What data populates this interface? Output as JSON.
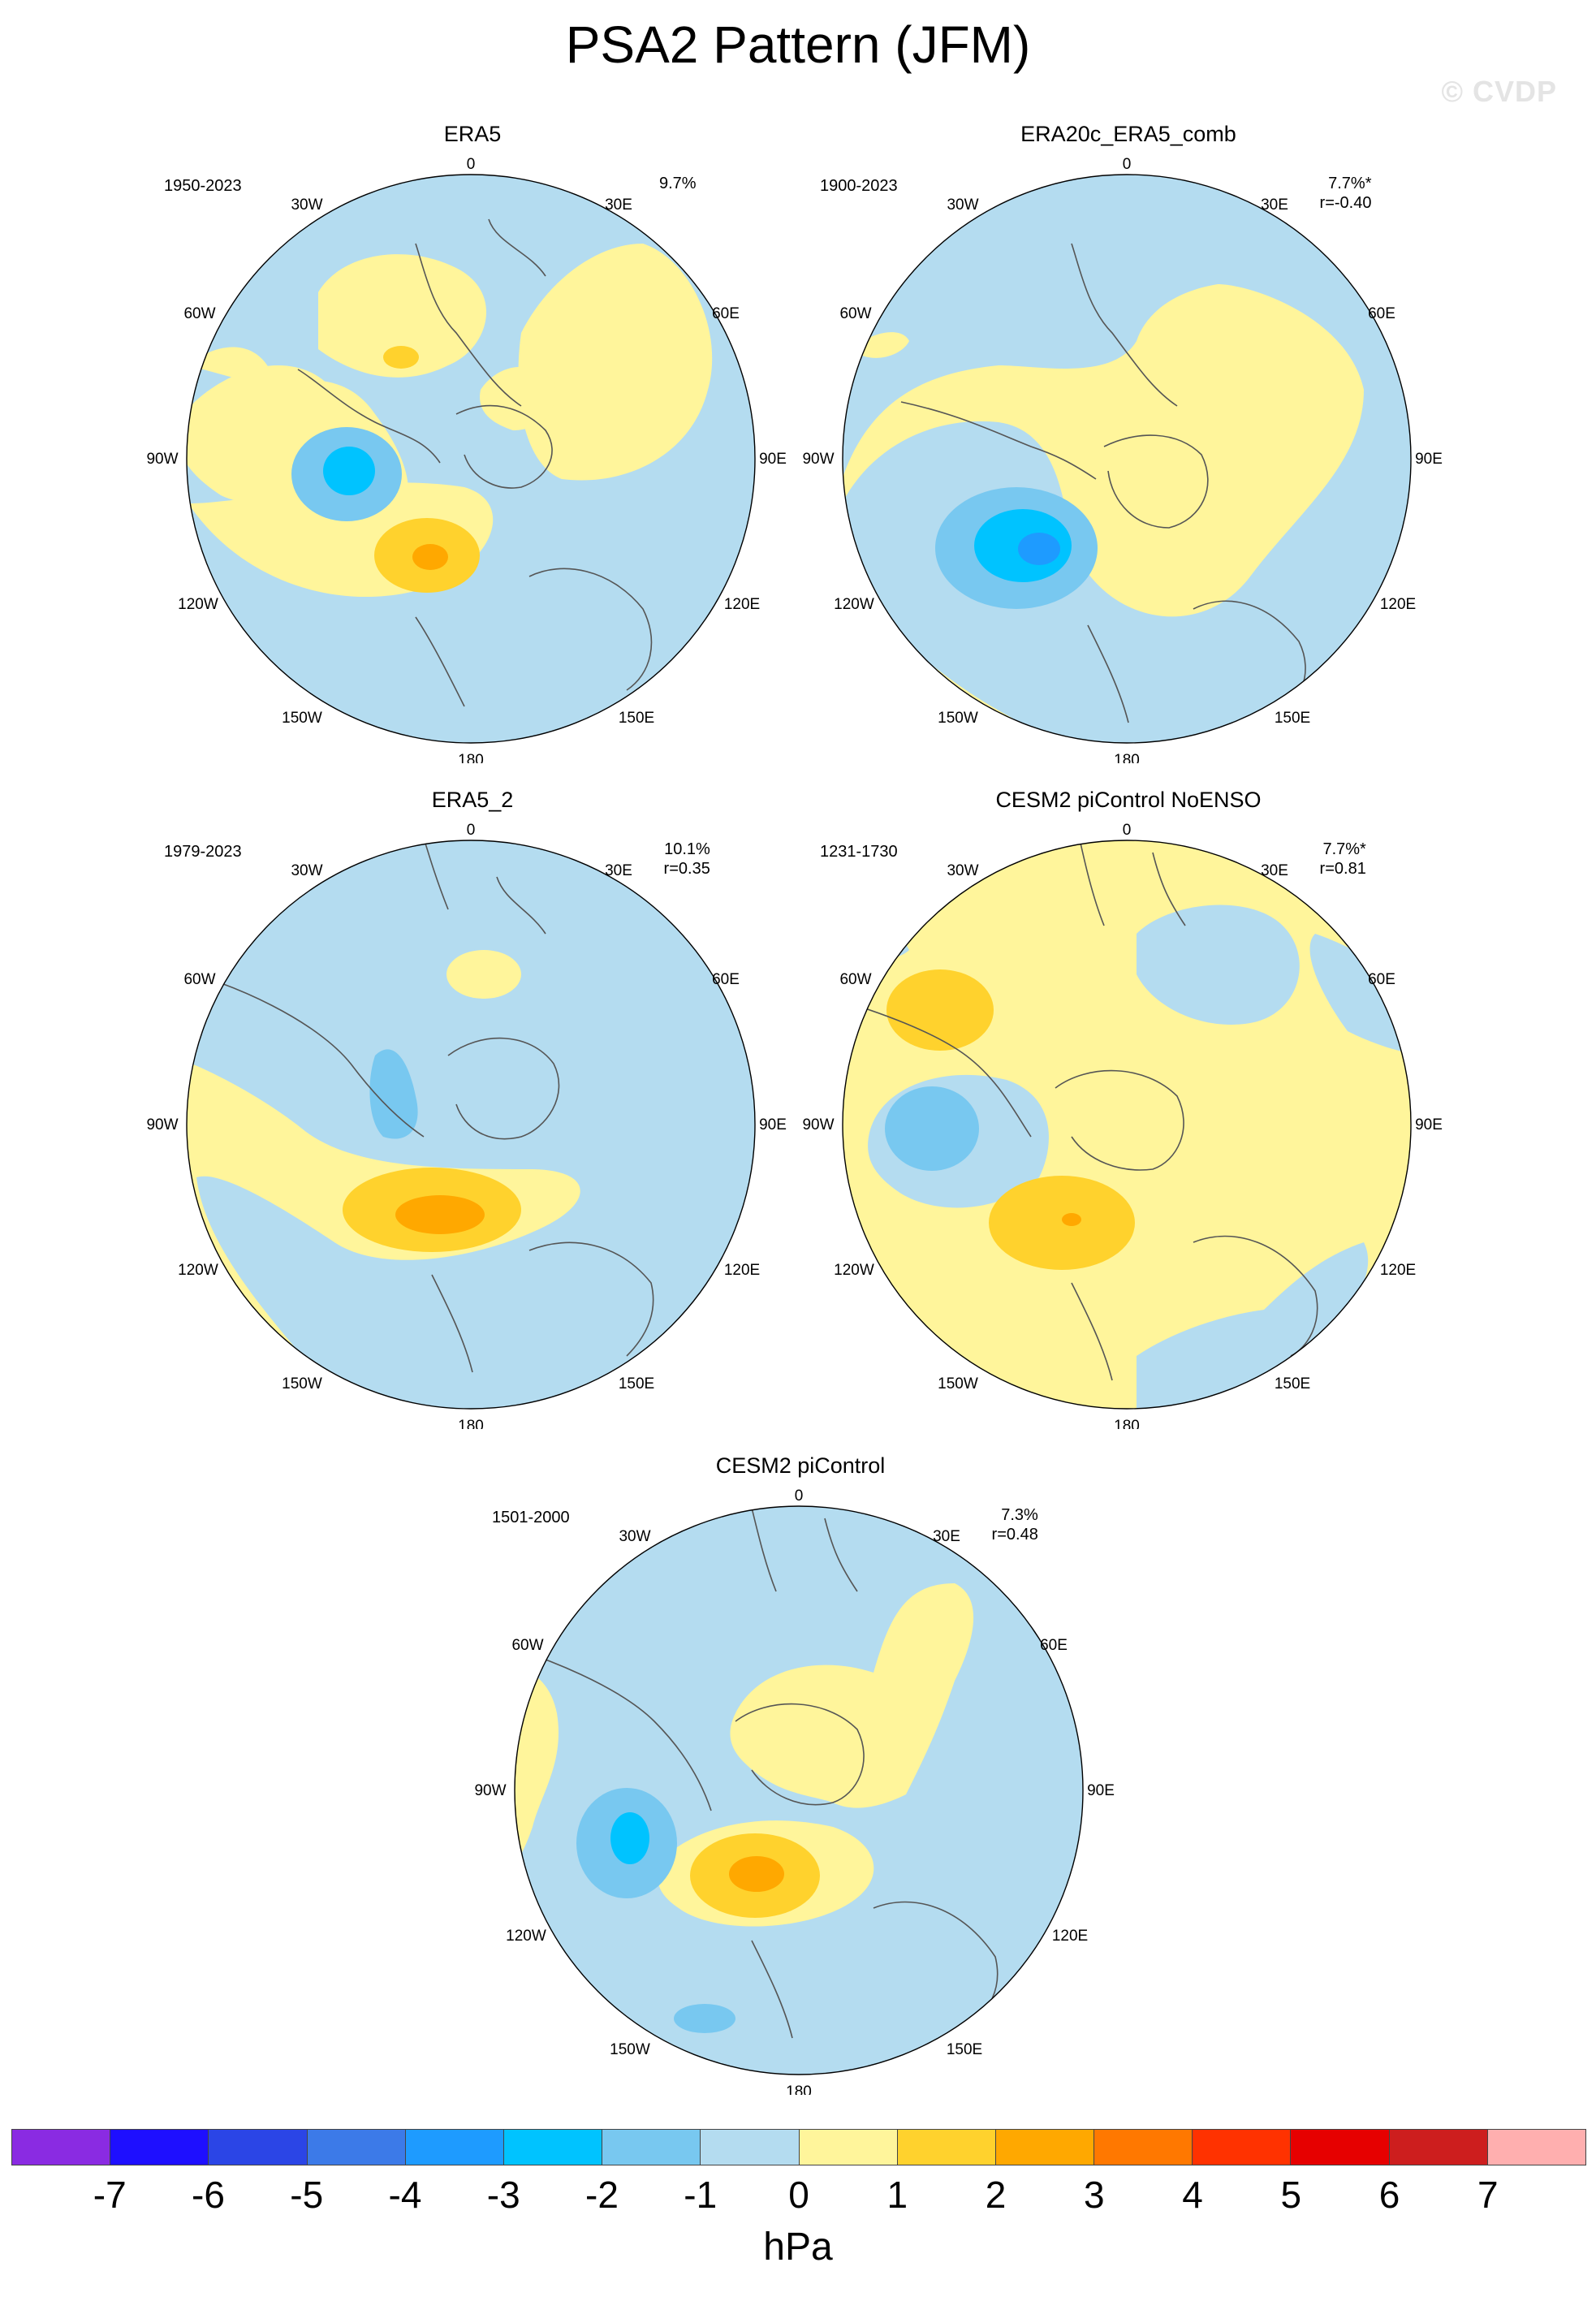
{
  "title": "PSA2 Pattern (JFM)",
  "watermark": "© CVDP",
  "units": "hPa",
  "colorbar": {
    "colors": [
      "#8a2be2",
      "#1e0fff",
      "#2b45e6",
      "#3c7ae8",
      "#1e9bff",
      "#00c3ff",
      "#78c8f0",
      "#b4dcf0",
      "#fff59b",
      "#ffd22d",
      "#ffa800",
      "#ff7800",
      "#ff3200",
      "#e60000",
      "#cd1e1e",
      "#ffafaf"
    ],
    "ticks": [
      "-7",
      "-6",
      "-5",
      "-4",
      "-3",
      "-2",
      "-1",
      "0",
      "1",
      "2",
      "3",
      "4",
      "5",
      "6",
      "7"
    ]
  },
  "lon_labels": {
    "top": "0",
    "n30e": "30E",
    "n60e": "60E",
    "e90": "90E",
    "e120": "120E",
    "e150": "150E",
    "bottom": "180",
    "w150": "150W",
    "w120": "120W",
    "w90": "90W",
    "w60": "60W",
    "n30w": "30W"
  },
  "panels": [
    {
      "id": "era5",
      "title": "ERA5",
      "years": "1950-2023",
      "stats": "9.7%"
    },
    {
      "id": "era20c",
      "title": "ERA20c_ERA5_comb",
      "years": "1900-2023",
      "stats": "7.7%*\n r=-0.40"
    },
    {
      "id": "era5_2",
      "title": "ERA5_2",
      "years": "1979-2023",
      "stats": "10.1%\n r=0.35"
    },
    {
      "id": "cesm_noenso",
      "title": "CESM2 piControl NoENSO",
      "years": "1231-1730",
      "stats": "7.7%*\n r=0.81"
    },
    {
      "id": "cesm",
      "title": "CESM2 piControl",
      "years": "1501-2000",
      "stats": "7.3%\n r=0.48"
    }
  ]
}
